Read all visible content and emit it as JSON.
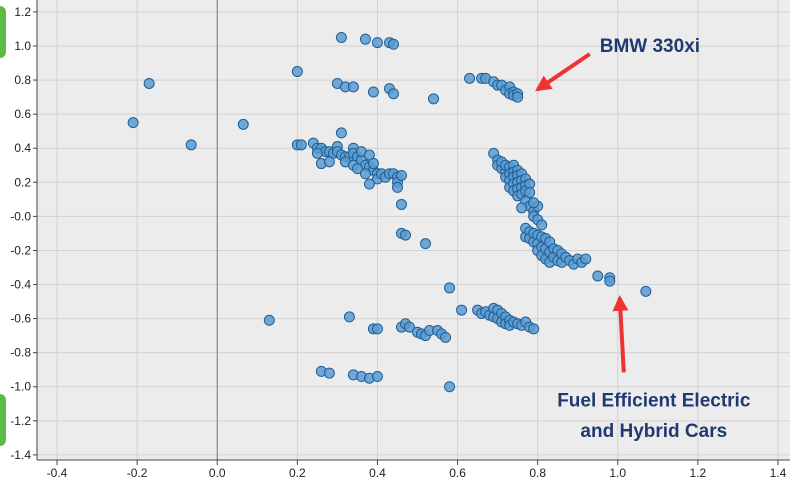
{
  "chart_data": {
    "type": "scatter",
    "xlim": [
      -0.45,
      1.43
    ],
    "ylim": [
      -1.43,
      1.27
    ],
    "xticks": [
      -0.4,
      -0.2,
      0.0,
      0.2,
      0.4,
      0.6,
      0.8,
      1.0,
      1.2,
      1.4
    ],
    "xtick_labels": [
      "-0.4",
      "-0.2",
      "0.0",
      "0.2",
      "0.4",
      "0.6",
      "0.8",
      "1.0",
      "1.2",
      "1.4"
    ],
    "yticks": [
      1.2,
      1.0,
      0.8,
      0.6,
      0.4,
      0.2,
      0.0,
      -0.2,
      -0.4,
      -0.6,
      -0.8,
      -1.0,
      -1.2,
      -1.4
    ],
    "ytick_labels": [
      "1.2",
      "1.0",
      "0.8",
      "0.6",
      "0.4",
      "0.2",
      "-0.0",
      "-0.2",
      "-0.4",
      "-0.6",
      "-0.8",
      "-1.0",
      "-1.2",
      "-1.4"
    ],
    "grid": true,
    "point_color": "#5b9bd0",
    "point_edge": "#1f5f96",
    "annotations": [
      {
        "text": "BMW 330xi",
        "x": 0.955,
        "y": 1.0,
        "arrow_to": [
          0.8,
          0.745
        ]
      },
      {
        "text": "Fuel Efficient Electric",
        "x": 1.09,
        "y": -1.08,
        "arrow_to": [
          1.005,
          -0.48
        ]
      },
      {
        "text": "and Hybrid Cars",
        "x": 1.09,
        "y": -1.26
      }
    ],
    "annotation_color": "#1f3a73",
    "arrow_color": "#ee3333",
    "points": [
      [
        -0.21,
        0.55
      ],
      [
        -0.17,
        0.78
      ],
      [
        -0.065,
        0.42
      ],
      [
        0.065,
        0.54
      ],
      [
        0.2,
        0.85
      ],
      [
        0.2,
        0.42
      ],
      [
        0.21,
        0.42
      ],
      [
        0.13,
        -0.61
      ],
      [
        0.31,
        1.05
      ],
      [
        0.37,
        1.04
      ],
      [
        0.4,
        1.02
      ],
      [
        0.43,
        1.02
      ],
      [
        0.44,
        1.01
      ],
      [
        0.3,
        0.78
      ],
      [
        0.32,
        0.76
      ],
      [
        0.34,
        0.76
      ],
      [
        0.39,
        0.73
      ],
      [
        0.43,
        0.75
      ],
      [
        0.44,
        0.72
      ],
      [
        0.54,
        0.69
      ],
      [
        0.31,
        0.49
      ],
      [
        0.24,
        0.43
      ],
      [
        0.25,
        0.4
      ],
      [
        0.26,
        0.4
      ],
      [
        0.27,
        0.38
      ],
      [
        0.28,
        0.38
      ],
      [
        0.29,
        0.37
      ],
      [
        0.3,
        0.41
      ],
      [
        0.3,
        0.38
      ],
      [
        0.31,
        0.36
      ],
      [
        0.32,
        0.35
      ],
      [
        0.33,
        0.35
      ],
      [
        0.34,
        0.4
      ],
      [
        0.34,
        0.37
      ],
      [
        0.35,
        0.35
      ],
      [
        0.36,
        0.33
      ],
      [
        0.36,
        0.38
      ],
      [
        0.37,
        0.3
      ],
      [
        0.38,
        0.29
      ],
      [
        0.38,
        0.36
      ],
      [
        0.39,
        0.27
      ],
      [
        0.39,
        0.31
      ],
      [
        0.4,
        0.25
      ],
      [
        0.4,
        0.22
      ],
      [
        0.41,
        0.25
      ],
      [
        0.42,
        0.23
      ],
      [
        0.43,
        0.25
      ],
      [
        0.44,
        0.25
      ],
      [
        0.45,
        0.23
      ],
      [
        0.45,
        0.2
      ],
      [
        0.45,
        0.17
      ],
      [
        0.46,
        0.07
      ],
      [
        0.46,
        0.24
      ],
      [
        0.26,
        0.31
      ],
      [
        0.28,
        0.32
      ],
      [
        0.32,
        0.32
      ],
      [
        0.34,
        0.3
      ],
      [
        0.35,
        0.28
      ],
      [
        0.37,
        0.25
      ],
      [
        0.38,
        0.19
      ],
      [
        0.25,
        0.37
      ],
      [
        0.46,
        -0.1
      ],
      [
        0.47,
        -0.11
      ],
      [
        0.52,
        -0.16
      ],
      [
        0.58,
        -0.42
      ],
      [
        0.33,
        -0.59
      ],
      [
        0.39,
        -0.66
      ],
      [
        0.4,
        -0.66
      ],
      [
        0.46,
        -0.65
      ],
      [
        0.47,
        -0.63
      ],
      [
        0.48,
        -0.65
      ],
      [
        0.5,
        -0.68
      ],
      [
        0.51,
        -0.69
      ],
      [
        0.52,
        -0.7
      ],
      [
        0.53,
        -0.67
      ],
      [
        0.55,
        -0.67
      ],
      [
        0.56,
        -0.69
      ],
      [
        0.57,
        -0.71
      ],
      [
        0.26,
        -0.91
      ],
      [
        0.28,
        -0.92
      ],
      [
        0.34,
        -0.93
      ],
      [
        0.36,
        -0.94
      ],
      [
        0.38,
        -0.95
      ],
      [
        0.4,
        -0.94
      ],
      [
        0.58,
        -1.0
      ],
      [
        0.63,
        0.81
      ],
      [
        0.66,
        0.81
      ],
      [
        0.67,
        0.81
      ],
      [
        0.69,
        0.79
      ],
      [
        0.7,
        0.77
      ],
      [
        0.71,
        0.77
      ],
      [
        0.72,
        0.74
      ],
      [
        0.73,
        0.76
      ],
      [
        0.73,
        0.72
      ],
      [
        0.74,
        0.73
      ],
      [
        0.74,
        0.71
      ],
      [
        0.75,
        0.72
      ],
      [
        0.75,
        0.7
      ],
      [
        0.69,
        0.37
      ],
      [
        0.7,
        0.33
      ],
      [
        0.7,
        0.3
      ],
      [
        0.71,
        0.28
      ],
      [
        0.71,
        0.32
      ],
      [
        0.72,
        0.26
      ],
      [
        0.72,
        0.3
      ],
      [
        0.72,
        0.23
      ],
      [
        0.73,
        0.29
      ],
      [
        0.73,
        0.25
      ],
      [
        0.73,
        0.21
      ],
      [
        0.73,
        0.17
      ],
      [
        0.74,
        0.3
      ],
      [
        0.74,
        0.26
      ],
      [
        0.74,
        0.23
      ],
      [
        0.74,
        0.19
      ],
      [
        0.74,
        0.15
      ],
      [
        0.75,
        0.27
      ],
      [
        0.75,
        0.24
      ],
      [
        0.75,
        0.2
      ],
      [
        0.75,
        0.16
      ],
      [
        0.75,
        0.12
      ],
      [
        0.76,
        0.25
      ],
      [
        0.76,
        0.21
      ],
      [
        0.76,
        0.17
      ],
      [
        0.76,
        0.13
      ],
      [
        0.77,
        0.22
      ],
      [
        0.77,
        0.18
      ],
      [
        0.77,
        0.15
      ],
      [
        0.77,
        0.09
      ],
      [
        0.78,
        0.19
      ],
      [
        0.78,
        0.14
      ],
      [
        0.78,
        0.06
      ],
      [
        0.79,
        0.03
      ],
      [
        0.79,
        0.0
      ],
      [
        0.8,
        0.06
      ],
      [
        0.8,
        -0.02
      ],
      [
        0.81,
        -0.05
      ],
      [
        0.76,
        0.05
      ],
      [
        0.79,
        0.08
      ],
      [
        0.77,
        -0.07
      ],
      [
        0.77,
        -0.12
      ],
      [
        0.78,
        -0.09
      ],
      [
        0.78,
        -0.13
      ],
      [
        0.79,
        -0.1
      ],
      [
        0.79,
        -0.15
      ],
      [
        0.8,
        -0.11
      ],
      [
        0.8,
        -0.16
      ],
      [
        0.8,
        -0.2
      ],
      [
        0.81,
        -0.12
      ],
      [
        0.81,
        -0.18
      ],
      [
        0.81,
        -0.23
      ],
      [
        0.82,
        -0.13
      ],
      [
        0.82,
        -0.19
      ],
      [
        0.82,
        -0.25
      ],
      [
        0.83,
        -0.15
      ],
      [
        0.83,
        -0.21
      ],
      [
        0.83,
        -0.27
      ],
      [
        0.84,
        -0.19
      ],
      [
        0.84,
        -0.24
      ],
      [
        0.85,
        -0.2
      ],
      [
        0.85,
        -0.26
      ],
      [
        0.86,
        -0.22
      ],
      [
        0.86,
        -0.27
      ],
      [
        0.87,
        -0.24
      ],
      [
        0.88,
        -0.26
      ],
      [
        0.89,
        -0.28
      ],
      [
        0.9,
        -0.25
      ],
      [
        0.91,
        -0.27
      ],
      [
        0.92,
        -0.25
      ],
      [
        0.95,
        -0.35
      ],
      [
        0.98,
        -0.36
      ],
      [
        0.98,
        -0.38
      ],
      [
        1.07,
        -0.44
      ],
      [
        0.61,
        -0.55
      ],
      [
        0.65,
        -0.55
      ],
      [
        0.66,
        -0.57
      ],
      [
        0.67,
        -0.56
      ],
      [
        0.68,
        -0.58
      ],
      [
        0.69,
        -0.54
      ],
      [
        0.69,
        -0.59
      ],
      [
        0.7,
        -0.55
      ],
      [
        0.7,
        -0.6
      ],
      [
        0.71,
        -0.57
      ],
      [
        0.71,
        -0.62
      ],
      [
        0.72,
        -0.59
      ],
      [
        0.72,
        -0.63
      ],
      [
        0.73,
        -0.61
      ],
      [
        0.73,
        -0.64
      ],
      [
        0.74,
        -0.62
      ],
      [
        0.75,
        -0.63
      ],
      [
        0.76,
        -0.64
      ],
      [
        0.77,
        -0.62
      ],
      [
        0.78,
        -0.65
      ],
      [
        0.79,
        -0.66
      ]
    ]
  }
}
